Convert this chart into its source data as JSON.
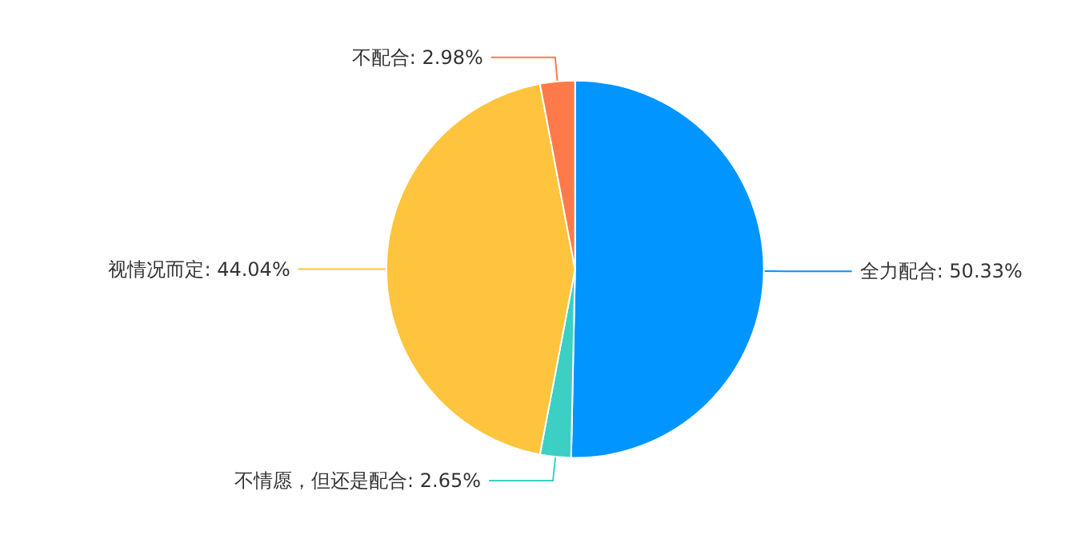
{
  "chart_data": {
    "type": "pie",
    "categories": [
      "全力配合",
      "不情愿，但还是配合",
      "视情况而定",
      "不配合"
    ],
    "values": [
      50.33,
      2.65,
      44.04,
      2.98
    ],
    "value_labels": [
      "50.33%",
      "2.65%",
      "44.04%",
      "2.98%"
    ],
    "colors": [
      "#0095ff",
      "#3ccfc4",
      "#ffc43d",
      "#ff7a4a"
    ],
    "legend": false
  }
}
